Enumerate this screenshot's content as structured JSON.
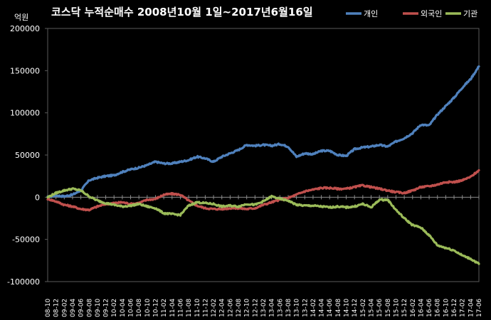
{
  "chart_data": {
    "type": "line",
    "title": "코스닥 누적순매수 2008년10월 1일~2017년6월16일",
    "unit_label": "억원",
    "ylim": [
      -100000,
      200000
    ],
    "y_ticks": [
      200000,
      150000,
      100000,
      50000,
      0,
      -50000,
      -100000
    ],
    "y_tick_labels": [
      "200000",
      "150000",
      "100000",
      "50000",
      "0",
      "-50000",
      "-100000"
    ],
    "x_ticks": [
      "08-10",
      "08-12",
      "09-02",
      "09-04",
      "09-06",
      "09-08",
      "09-10",
      "09-12",
      "10-02",
      "10-04",
      "10-06",
      "10-08",
      "10-10",
      "10-12",
      "11-02",
      "11-04",
      "11-06",
      "11-08",
      "11-10",
      "11-12",
      "12-02",
      "12-04",
      "12-06",
      "12-08",
      "12-10",
      "12-12",
      "13-02",
      "13-04",
      "13-06",
      "13-08",
      "13-10",
      "13-12",
      "14-02",
      "14-04",
      "14-06",
      "14-08",
      "14-10",
      "14-12",
      "15-02",
      "15-04",
      "15-06",
      "15-08",
      "15-10",
      "15-12",
      "16-02",
      "16-04",
      "16-06",
      "16-08",
      "16-10",
      "16-12",
      "17-02",
      "17-04",
      "17-06"
    ],
    "grid": false,
    "legend_position": "top-right",
    "series": [
      {
        "name": "개인",
        "color": "#4f81bd",
        "values": [
          0,
          2000,
          1000,
          3000,
          8000,
          20000,
          23000,
          25000,
          26000,
          30000,
          33000,
          35000,
          38000,
          42000,
          40000,
          40000,
          42000,
          44000,
          48000,
          46000,
          42000,
          48000,
          52000,
          56000,
          62000,
          61000,
          62000,
          61000,
          63000,
          60000,
          48000,
          52000,
          51000,
          55000,
          55000,
          50000,
          49000,
          57000,
          59000,
          60000,
          62000,
          60000,
          66000,
          70000,
          76000,
          86000,
          85000,
          98000,
          108000,
          118000,
          130000,
          140000,
          155000
        ]
      },
      {
        "name": "외국인",
        "color": "#c0504d",
        "values": [
          -2000,
          -5000,
          -9000,
          -11000,
          -14000,
          -15000,
          -11000,
          -8000,
          -7000,
          -6000,
          -8000,
          -7000,
          -3000,
          -2000,
          3000,
          4000,
          3000,
          -4000,
          -10000,
          -13000,
          -14000,
          -14000,
          -13000,
          -13000,
          -14000,
          -13000,
          -9000,
          -6000,
          -3000,
          -1000,
          3000,
          7000,
          9000,
          11000,
          11000,
          10000,
          10000,
          12000,
          14000,
          12000,
          10000,
          8000,
          6000,
          5000,
          8000,
          12000,
          13000,
          15000,
          18000,
          18000,
          20000,
          24000,
          32000
        ]
      },
      {
        "name": "기관",
        "color": "#9bbb59",
        "values": [
          0,
          5000,
          8000,
          10000,
          8000,
          1000,
          -4000,
          -7000,
          -9000,
          -11000,
          -10000,
          -8000,
          -11000,
          -13000,
          -19000,
          -20000,
          -21000,
          -10000,
          -6000,
          -7000,
          -8000,
          -11000,
          -10000,
          -11000,
          -8000,
          -9000,
          -5000,
          1000,
          -2000,
          -4000,
          -9000,
          -10000,
          -10000,
          -11000,
          -12000,
          -11000,
          -12000,
          -11000,
          -8000,
          -12000,
          -3000,
          -3000,
          -15000,
          -25000,
          -33000,
          -36000,
          -45000,
          -57000,
          -60000,
          -63000,
          -69000,
          -73000,
          -79000
        ]
      }
    ]
  }
}
